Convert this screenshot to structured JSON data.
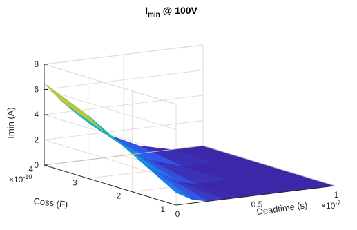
{
  "chart_data": {
    "type": "surface",
    "title": "I",
    "title_sub": "min",
    "title_rest": " @ 100V",
    "xlabel": "Deadtime (s)",
    "ylabel": "Coss (F)",
    "zlabel": "Imin (A)",
    "x_multiplier": "×10",
    "x_exponent": "-7",
    "y_multiplier": "×10",
    "y_exponent": "-10",
    "x_ticks": [
      0,
      0.5,
      1
    ],
    "x_tick_labels": [
      "0",
      "0.5",
      "1"
    ],
    "y_ticks": [
      1,
      2,
      3,
      4
    ],
    "y_tick_labels": [
      "1",
      "2",
      "3",
      "4"
    ],
    "z_ticks": [
      0,
      2,
      4,
      6,
      8
    ],
    "z_tick_labels": [
      "0",
      "2",
      "4",
      "6",
      "8"
    ],
    "xlim": [
      0,
      1
    ],
    "ylim": [
      1,
      4
    ],
    "zlim": [
      0,
      8
    ],
    "colormap": "parula",
    "grid": true,
    "surface_rows_coss": [
      1,
      2,
      3,
      4
    ],
    "surface_cols_deadtime": [
      0,
      0.1,
      0.2,
      0.3,
      0.4,
      0.6,
      0.8,
      1.0
    ],
    "z_values": [
      [
        1.0,
        0.3,
        0.0,
        0.0,
        0.0,
        0.0,
        0.0,
        0.0
      ],
      [
        3.0,
        1.9,
        1.0,
        0.3,
        0.0,
        0.0,
        0.0,
        0.0
      ],
      [
        5.0,
        3.6,
        2.5,
        1.5,
        0.8,
        0.0,
        0.0,
        0.0
      ],
      [
        6.5,
        5.0,
        3.8,
        2.7,
        1.8,
        0.6,
        0.0,
        0.0
      ]
    ]
  }
}
